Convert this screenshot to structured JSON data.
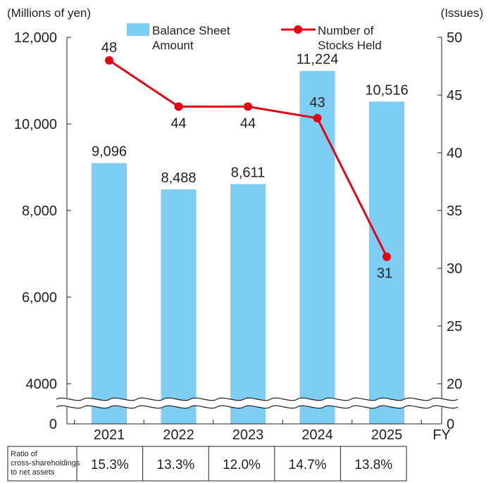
{
  "chart_data": {
    "type": "bar+line",
    "left_axis_label": "(Millions of yen)",
    "right_axis_label": "(Issues)",
    "left_ticks": [
      "12,000",
      "10,000",
      "8,000",
      "6,000",
      "4000",
      "0"
    ],
    "left_tick_values": [
      12000,
      10000,
      8000,
      6000,
      4000,
      0
    ],
    "right_ticks": [
      "50",
      "45",
      "40",
      "35",
      "30",
      "25",
      "20",
      "0"
    ],
    "right_tick_values": [
      50,
      45,
      40,
      35,
      30,
      25,
      20,
      0
    ],
    "left_ylim_upper": [
      4000,
      12000
    ],
    "right_ylim_upper": [
      20,
      50
    ],
    "axis_break": true,
    "x_axis_label": "FY",
    "categories": [
      "2021",
      "2022",
      "2023",
      "2024",
      "2025"
    ],
    "series": [
      {
        "name": "Balance Sheet Amount",
        "legend_lines": [
          "Balance Sheet",
          "Amount"
        ],
        "type": "bar",
        "axis": "left",
        "color": "#7ecef4",
        "values": [
          9096,
          8488,
          8611,
          11224,
          10516
        ],
        "labels": [
          "9,096",
          "8,488",
          "8,611",
          "11,224",
          "10,516"
        ]
      },
      {
        "name": "Number of Stocks Held",
        "legend_lines": [
          "Number of",
          "Stocks Held"
        ],
        "type": "line",
        "axis": "right",
        "color": "#e60012",
        "values": [
          48,
          44,
          44,
          43,
          31
        ],
        "labels": [
          "48",
          "44",
          "44",
          "43",
          "31"
        ]
      }
    ],
    "table": {
      "row_header_lines": [
        "Ratio of",
        "cross-shareholdings",
        "to net assets"
      ],
      "values": [
        "15.3%",
        "13.3%",
        "12.0%",
        "14.7%",
        "13.8%"
      ]
    }
  }
}
